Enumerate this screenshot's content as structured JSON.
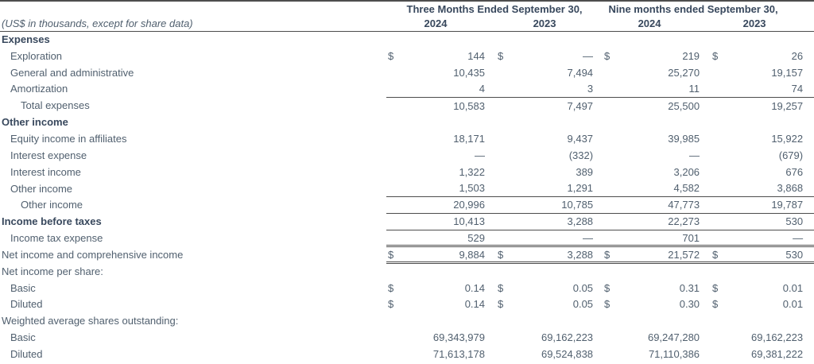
{
  "table": {
    "unit_note": "(US$ in thousands, except for share data)",
    "currency_symbol": "$",
    "col_groups": [
      {
        "label": "Three Months Ended September 30,"
      },
      {
        "label": "Nine months ended September 30,"
      }
    ],
    "years": [
      "2024",
      "2023",
      "2024",
      "2023"
    ],
    "text_color": "#51606f",
    "heading_color": "#38485d",
    "rule_color": "#4d4d4d",
    "rows": [
      {
        "label": "Expenses",
        "bold": true,
        "indent": 0,
        "dollar": false,
        "values": [
          "",
          "",
          "",
          ""
        ],
        "rule": "none"
      },
      {
        "label": "Exploration",
        "bold": false,
        "indent": 1,
        "dollar": true,
        "values": [
          "144",
          "—",
          "219",
          "26"
        ],
        "rule": "none"
      },
      {
        "label": "General and administrative",
        "bold": false,
        "indent": 1,
        "dollar": false,
        "values": [
          "10,435",
          "7,494",
          "25,270",
          "19,157"
        ],
        "rule": "none"
      },
      {
        "label": "Amortization",
        "bold": false,
        "indent": 1,
        "dollar": false,
        "values": [
          "4",
          "3",
          "11",
          "74"
        ],
        "rule": "none"
      },
      {
        "label": "Total expenses",
        "bold": false,
        "indent": 2,
        "dollar": false,
        "values": [
          "10,583",
          "7,497",
          "25,500",
          "19,257"
        ],
        "rule": "top"
      },
      {
        "label": "Other income",
        "bold": true,
        "indent": 0,
        "dollar": false,
        "values": [
          "",
          "",
          "",
          ""
        ],
        "rule": "none"
      },
      {
        "label": "Equity income in affiliates",
        "bold": false,
        "indent": 1,
        "dollar": false,
        "values": [
          "18,171",
          "9,437",
          "39,985",
          "15,922"
        ],
        "rule": "none"
      },
      {
        "label": "Interest expense",
        "bold": false,
        "indent": 1,
        "dollar": false,
        "values": [
          "—",
          "(332)",
          "—",
          "(679)"
        ],
        "rule": "none"
      },
      {
        "label": "Interest income",
        "bold": false,
        "indent": 1,
        "dollar": false,
        "values": [
          "1,322",
          "389",
          "3,206",
          "676"
        ],
        "rule": "none"
      },
      {
        "label": "Other income",
        "bold": false,
        "indent": 1,
        "dollar": false,
        "values": [
          "1,503",
          "1,291",
          "4,582",
          "3,868"
        ],
        "rule": "none"
      },
      {
        "label": "Other income",
        "bold": false,
        "indent": 2,
        "dollar": false,
        "values": [
          "20,996",
          "10,785",
          "47,773",
          "19,787"
        ],
        "rule": "top-bottom"
      },
      {
        "label": "Income before taxes",
        "bold": true,
        "indent": 0,
        "dollar": false,
        "values": [
          "10,413",
          "3,288",
          "22,273",
          "530"
        ],
        "rule": "bottom"
      },
      {
        "label": "Income tax expense",
        "bold": false,
        "indent": 1,
        "dollar": false,
        "values": [
          "529",
          "—",
          "701",
          "—"
        ],
        "rule": "none"
      },
      {
        "label": "Net income and comprehensive income",
        "bold": false,
        "indent": 0,
        "dollar": true,
        "values": [
          "9,884",
          "3,288",
          "21,572",
          "530"
        ],
        "rule": "double"
      },
      {
        "label": "Net income per share:",
        "bold": false,
        "indent": 0,
        "dollar": false,
        "values": [
          "",
          "",
          "",
          ""
        ],
        "rule": "none"
      },
      {
        "label": "Basic",
        "bold": false,
        "indent": 1,
        "dollar": true,
        "values": [
          "0.14",
          "0.05",
          "0.31",
          "0.01"
        ],
        "rule": "none"
      },
      {
        "label": "Diluted",
        "bold": false,
        "indent": 1,
        "dollar": true,
        "values": [
          "0.14",
          "0.05",
          "0.30",
          "0.01"
        ],
        "rule": "none"
      },
      {
        "label": "Weighted average shares outstanding:",
        "bold": false,
        "indent": 0,
        "dollar": false,
        "values": [
          "",
          "",
          "",
          ""
        ],
        "rule": "none"
      },
      {
        "label": "Basic",
        "bold": false,
        "indent": 1,
        "dollar": false,
        "values": [
          "69,343,979",
          "69,162,223",
          "69,247,280",
          "69,162,223"
        ],
        "rule": "none"
      },
      {
        "label": "Diluted",
        "bold": false,
        "indent": 1,
        "dollar": false,
        "values": [
          "71,613,178",
          "69,524,838",
          "71,110,386",
          "69,381,222"
        ],
        "rule": "none"
      }
    ]
  }
}
